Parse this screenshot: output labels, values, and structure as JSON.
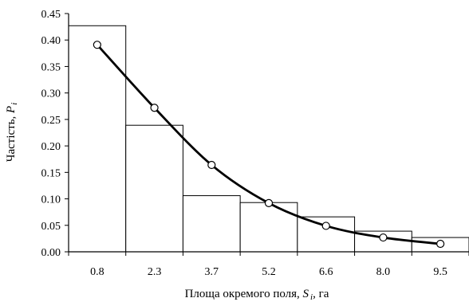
{
  "chart_data": {
    "type": "bar",
    "xlabel_main": "Площа окремого поля, ",
    "xlabel_var": "S",
    "xlabel_sub": "i",
    "xlabel_unit": ", га",
    "ylabel_main": "Частість, ",
    "ylabel_var": "P",
    "ylabel_sub": "i",
    "ylim": [
      0,
      0.45
    ],
    "y_ticks": [
      "0.00",
      "0.05",
      "0.10",
      "0.15",
      "0.20",
      "0.25",
      "0.30",
      "0.35",
      "0.40",
      "0.45"
    ],
    "categories": [
      "0.8",
      "2.3",
      "3.7",
      "5.2",
      "6.6",
      "8.0",
      "9.5"
    ],
    "values": [
      0.427,
      0.239,
      0.106,
      0.093,
      0.066,
      0.039,
      0.027
    ],
    "curve_points": [
      0.391,
      0.272,
      0.164,
      0.092,
      0.049,
      0.027,
      0.015
    ],
    "grid": false,
    "legend": "none"
  }
}
